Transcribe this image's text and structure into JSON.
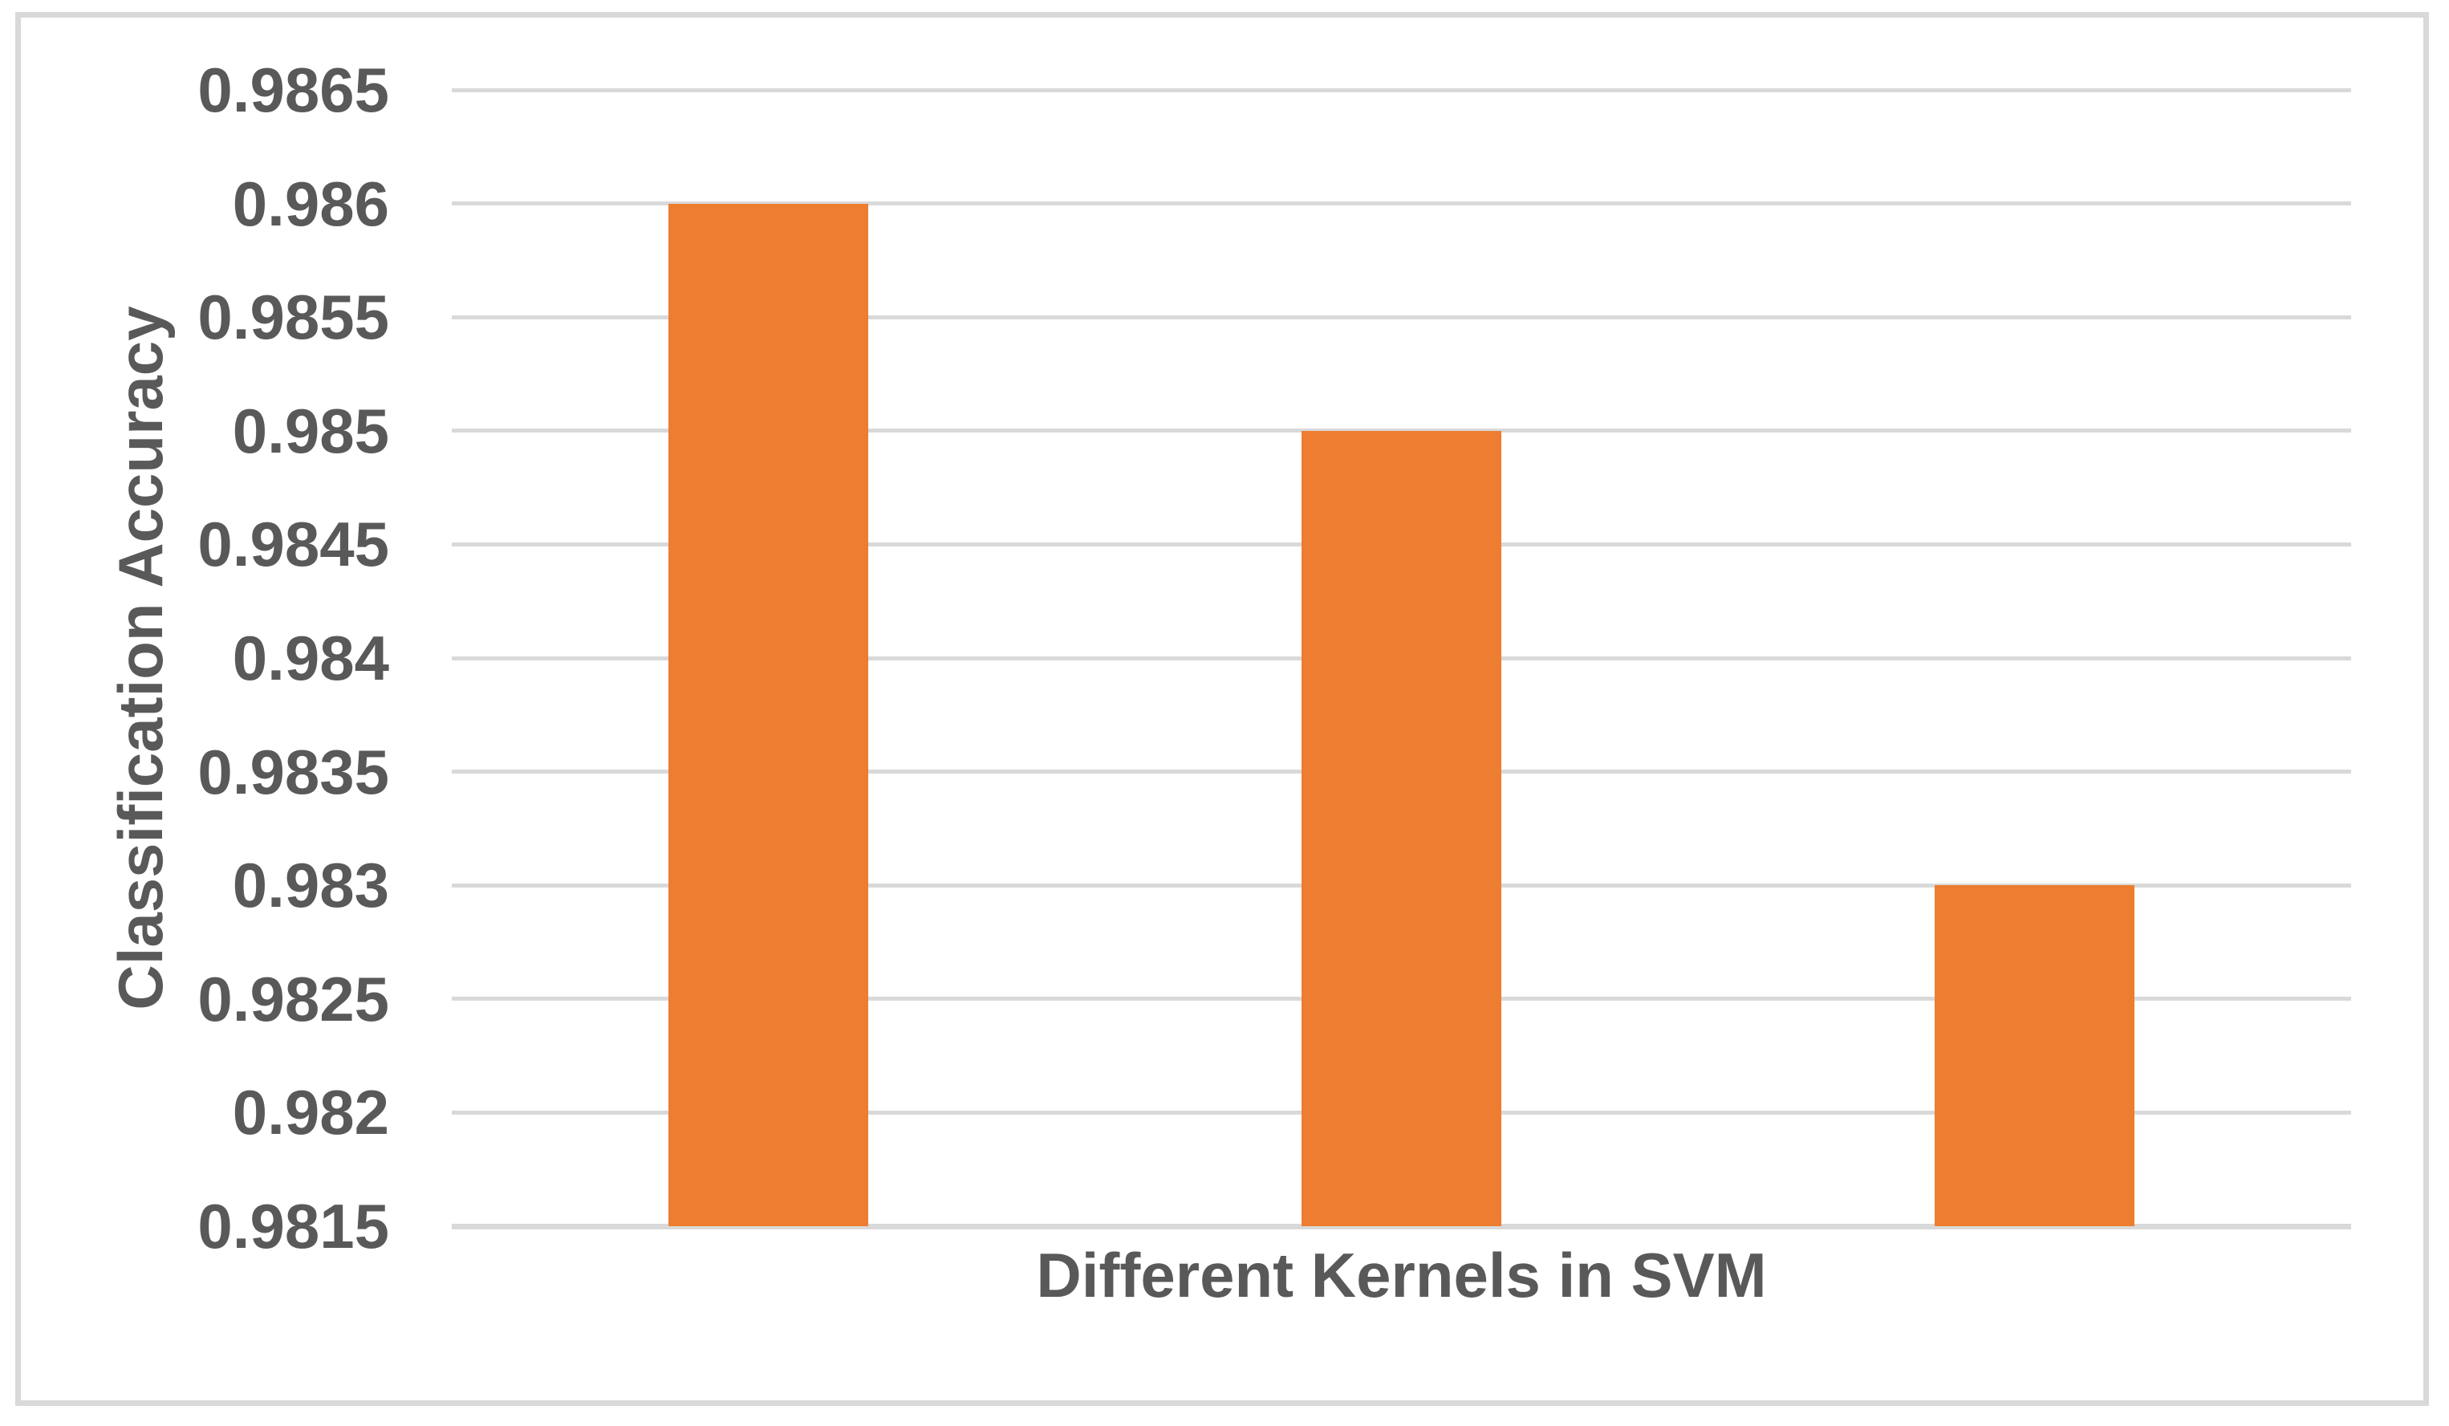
{
  "chart_data": {
    "type": "bar",
    "categories": [
      "",
      "",
      ""
    ],
    "values": [
      0.986,
      0.985,
      0.983
    ],
    "title": "",
    "xlabel": "Different Kernels in SVM",
    "ylabel": "Classification Accuracy",
    "ylim": [
      0.9815,
      0.9865
    ],
    "ytick_step": 0.0005,
    "yticks": [
      "0.9865",
      "0.986",
      "0.9855",
      "0.985",
      "0.9845",
      "0.984",
      "0.9835",
      "0.983",
      "0.9825",
      "0.982",
      "0.9815"
    ],
    "grid": true,
    "legend": false,
    "colors": {
      "bar": "#ED7D31",
      "gridline": "#D9D9D9",
      "axisline": "#D9D9D9",
      "frame_border": "#D9D9D9",
      "text": "#595959",
      "background": "#FFFFFF"
    }
  }
}
